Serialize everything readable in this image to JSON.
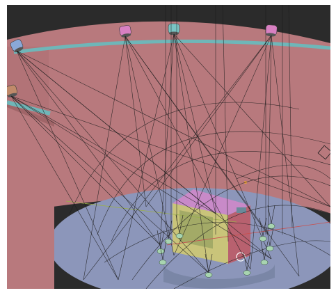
{
  "app": {
    "window": "3D Viewport",
    "view_mode": "wireframe-overlay",
    "shading": "solid"
  },
  "scene": {
    "objects": [
      {
        "name": "cylindrical-wall",
        "kind": "mesh"
      },
      {
        "name": "interior-wall-panel",
        "kind": "mesh"
      },
      {
        "name": "circular-stage-floor",
        "kind": "mesh"
      },
      {
        "name": "raised-turntable",
        "kind": "mesh"
      },
      {
        "name": "device-box",
        "kind": "mesh"
      },
      {
        "name": "ceiling-rail",
        "kind": "mesh"
      },
      {
        "name": "left-rail",
        "kind": "mesh"
      },
      {
        "name": "spotlights",
        "kind": "light",
        "count": 5
      },
      {
        "name": "floor-lamps",
        "kind": "light",
        "count": 10
      },
      {
        "name": "camera-gizmo",
        "kind": "camera"
      }
    ]
  },
  "colors": {
    "background": "#2b2b2b",
    "wall": "#b8797d",
    "wall_dark": "#a06568",
    "floor": "#8c96ba",
    "turntable": "#7a86a6",
    "box_top": "#c88ac8",
    "box_front": "#c9c47a",
    "box_side": "#b8616f",
    "rail": "#6fb6b8",
    "wire": "#1c1c1c",
    "lamp": "#a8d4b0",
    "spot_pink": "#d880c2",
    "spot_teal": "#7ac4c4",
    "spot_blue": "#8aa8d8",
    "spot_copper": "#c08a6a",
    "axis_x": "#c85050",
    "axis_y": "#9ab04a",
    "origin": "#e8a040"
  }
}
